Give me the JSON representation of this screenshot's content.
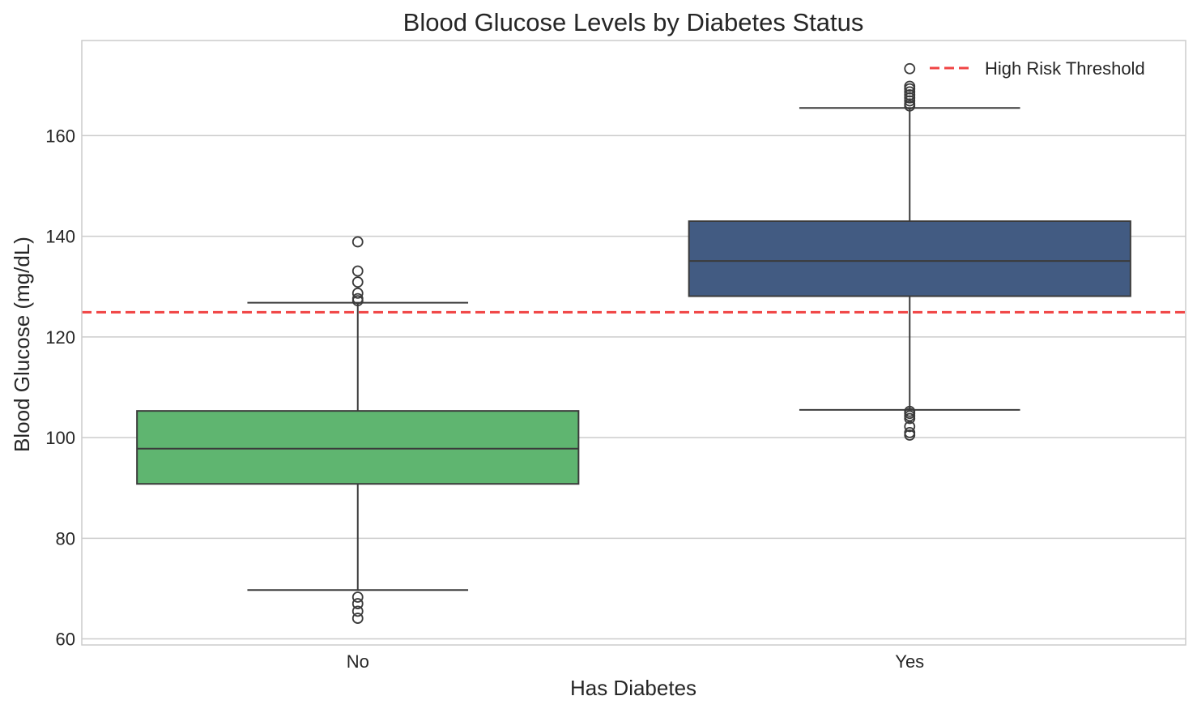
{
  "chart_data": {
    "type": "box",
    "title": "Blood Glucose Levels by Diabetes Status",
    "xlabel": "Has Diabetes",
    "ylabel": "Blood Glucose (mg/dL)",
    "categories": [
      "No",
      "Yes"
    ],
    "ylim": [
      58.8,
      178.9
    ],
    "yticks": [
      60,
      80,
      100,
      120,
      140,
      160
    ],
    "grid": true,
    "legend_placement": "top-right",
    "boxes": [
      {
        "category": "No",
        "whisker_low": 69.7,
        "q1": 90.8,
        "median": 97.8,
        "q3": 105.3,
        "whisker_high": 126.8,
        "outliers": [
          64.1,
          65.5,
          67.0,
          68.3,
          127.2,
          127.6,
          128.7,
          130.9,
          133.1,
          138.9
        ],
        "color": "#5fb570"
      },
      {
        "category": "Yes",
        "whisker_low": 105.5,
        "q1": 128.1,
        "median": 135.1,
        "q3": 143.0,
        "whisker_high": 165.5,
        "outliers": [
          100.5,
          101.0,
          102.2,
          103.8,
          104.3,
          104.8,
          105.2,
          165.9,
          166.3,
          166.9,
          167.5,
          168.1,
          168.7,
          169.3,
          169.8,
          173.3
        ],
        "color": "#425b82"
      }
    ],
    "reference_line": {
      "value": 124.9,
      "label": "High Risk Threshold",
      "color": "#f04444",
      "style": "dashed"
    }
  }
}
